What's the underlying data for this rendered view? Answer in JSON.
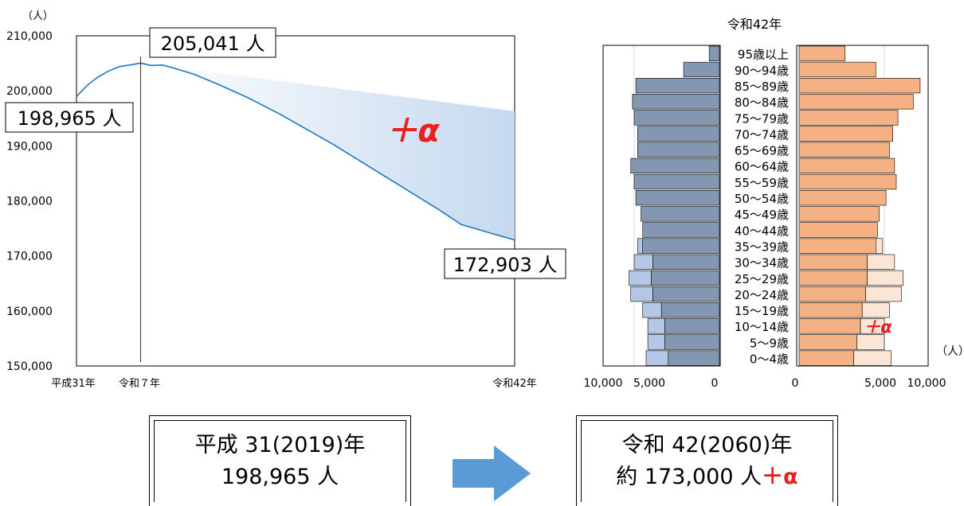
{
  "chart_data": [
    {
      "type": "area",
      "y_unit": "（人）",
      "ylim": [
        150000,
        210000
      ],
      "y_ticks": [
        "210,000",
        "200,000",
        "190,000",
        "180,000",
        "170,000",
        "160,000",
        "150,000"
      ],
      "x_ticks": [
        "平成31年",
        "令和７年",
        "令和42年"
      ],
      "series": [
        {
          "x": [
            2019,
            2020,
            2021,
            2022,
            2023,
            2024,
            2025,
            2026,
            2027,
            2028,
            2030,
            2032,
            2035,
            2038,
            2040,
            2043,
            2045,
            2048,
            2050,
            2053,
            2055,
            2058,
            2060
          ],
          "values": [
            198965,
            201000,
            202500,
            203600,
            204400,
            204700,
            205041,
            204600,
            204700,
            204200,
            203000,
            201400,
            198800,
            195800,
            193600,
            190300,
            187900,
            184300,
            181900,
            178300,
            175700,
            174000,
            172903
          ]
        }
      ],
      "upper_band": {
        "x": [
          2025,
          2060
        ],
        "values": [
          205041,
          196300
        ]
      },
      "vline_at": 2025,
      "annotations": {
        "peak": "205,041 人",
        "start": "198,965 人",
        "end": "172,903 人",
        "plus_alpha": "＋α"
      }
    },
    {
      "type": "bar",
      "title": "令和42年",
      "unit": "（人）",
      "categories": [
        "95歳以上",
        "90～94歳",
        "85～89歳",
        "80～84歳",
        "75～79歳",
        "70～74歳",
        "65～69歳",
        "60～64歳",
        "55～59歳",
        "50～54歳",
        "45～49歳",
        "40～44歳",
        "35～39歳",
        "30～34歳",
        "25～29歳",
        "20～24歳",
        "15～19歳",
        "10～14歳",
        "5～9歳",
        "0～4歳"
      ],
      "x_ticks_left": [
        "10,000",
        "5,000",
        "0"
      ],
      "x_ticks_right": [
        "0",
        "5,000",
        "10,000"
      ],
      "xlim": [
        0,
        10000
      ],
      "male": [
        600,
        2100,
        4900,
        5100,
        5000,
        4800,
        4800,
        5200,
        5000,
        4900,
        4600,
        4500,
        4500,
        3900,
        4000,
        3900,
        3400,
        3200,
        3200,
        3000
      ],
      "male_plus": [
        0,
        0,
        0,
        0,
        0,
        0,
        0,
        0,
        0,
        0,
        0,
        0,
        300,
        1100,
        1300,
        1300,
        1100,
        1000,
        1000,
        1300
      ],
      "female": [
        2700,
        4500,
        7100,
        6700,
        5800,
        5500,
        5300,
        5600,
        5700,
        5100,
        4700,
        4600,
        4500,
        4000,
        4000,
        3900,
        3700,
        3600,
        3400,
        3200
      ],
      "female_plus": [
        0,
        0,
        0,
        0,
        0,
        0,
        0,
        0,
        0,
        0,
        0,
        0,
        400,
        1600,
        2100,
        2100,
        1600,
        1400,
        1600,
        2200
      ],
      "annotation": "＋α"
    }
  ],
  "summary": {
    "left_line1": "平成 31(2019)年",
    "left_line2": "198,965 人",
    "right_line1": "令和 42(2060)年",
    "right_line2": "約 173,000 人",
    "right_alpha": "＋α"
  },
  "colors": {
    "line": "#1f77c4",
    "band": "#c5d9ef",
    "male": "#8497b0",
    "male_plus": "#b4c7e7",
    "female": "#f4b183",
    "female_plus": "#fbe5d6",
    "alpha": "#e8201e",
    "arrow": "#5b9bd5"
  }
}
